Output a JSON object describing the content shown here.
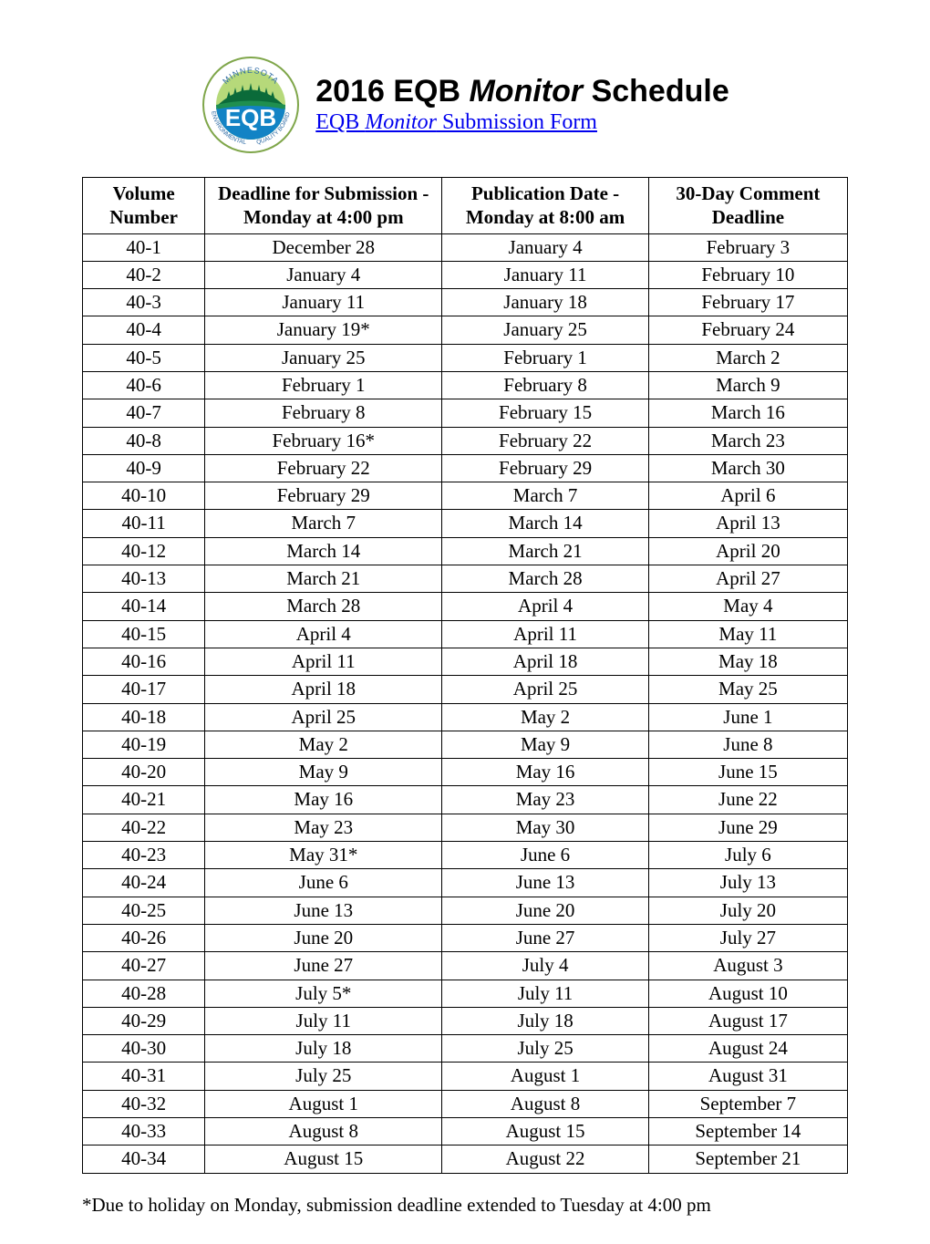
{
  "title": {
    "prefix": "2016 EQB ",
    "italic": "Monitor",
    "suffix": " Schedule"
  },
  "link": {
    "prefix": "EQB ",
    "italic": "Monitor",
    "suffix": " Submission Form"
  },
  "logo": {
    "outer_text_top": "MINNESOTA",
    "outer_text_bottom_left": "ENVIRONMENTAL",
    "outer_text_bottom_right": "QUALITY BOARD",
    "center_text": "EQB",
    "colors": {
      "ring_fill": "#ffffff",
      "ring_text": "#2d6aa4",
      "sky": "#b6d97a",
      "trees": "#0b6b3a",
      "hill": "#1f8f4f",
      "water": "#1283c5",
      "ring_border": "#7fa64a"
    }
  },
  "table": {
    "columns": [
      {
        "line1": "Volume",
        "line2": "Number"
      },
      {
        "line1": "Deadline for Submission -",
        "line2": "Monday at 4:00 pm"
      },
      {
        "line1": "Publication Date -",
        "line2": "Monday at 8:00 am"
      },
      {
        "line1": "30-Day Comment",
        "line2": "Deadline"
      }
    ],
    "rows": [
      [
        "40-1",
        "December 28",
        "January 4",
        "February 3"
      ],
      [
        "40-2",
        "January 4",
        "January 11",
        "February 10"
      ],
      [
        "40-3",
        "January 11",
        "January 18",
        "February 17"
      ],
      [
        "40-4",
        "January 19*",
        "January 25",
        "February 24"
      ],
      [
        "40-5",
        "January 25",
        "February 1",
        "March 2"
      ],
      [
        "40-6",
        "February 1",
        "February 8",
        "March 9"
      ],
      [
        "40-7",
        "February 8",
        "February 15",
        "March 16"
      ],
      [
        "40-8",
        "February 16*",
        "February 22",
        "March 23"
      ],
      [
        "40-9",
        "February 22",
        "February 29",
        "March 30"
      ],
      [
        "40-10",
        "February 29",
        "March 7",
        "April 6"
      ],
      [
        "40-11",
        "March 7",
        "March 14",
        "April 13"
      ],
      [
        "40-12",
        "March 14",
        "March 21",
        "April 20"
      ],
      [
        "40-13",
        "March 21",
        "March 28",
        "April 27"
      ],
      [
        "40-14",
        "March 28",
        "April 4",
        "May 4"
      ],
      [
        "40-15",
        "April 4",
        "April 11",
        "May 11"
      ],
      [
        "40-16",
        "April 11",
        "April 18",
        "May 18"
      ],
      [
        "40-17",
        "April 18",
        "April 25",
        "May 25"
      ],
      [
        "40-18",
        "April 25",
        "May 2",
        "June 1"
      ],
      [
        "40-19",
        "May 2",
        "May 9",
        "June 8"
      ],
      [
        "40-20",
        "May 9",
        "May 16",
        "June 15"
      ],
      [
        "40-21",
        "May 16",
        "May 23",
        "June 22"
      ],
      [
        "40-22",
        "May 23",
        "May 30",
        "June 29"
      ],
      [
        "40-23",
        "May 31*",
        "June 6",
        "July 6"
      ],
      [
        "40-24",
        "June 6",
        "June 13",
        "July 13"
      ],
      [
        "40-25",
        "June 13",
        "June 20",
        "July 20"
      ],
      [
        "40-26",
        "June 20",
        "June 27",
        "July 27"
      ],
      [
        "40-27",
        "June 27",
        "July 4",
        "August 3"
      ],
      [
        "40-28",
        "July 5*",
        "July 11",
        "August 10"
      ],
      [
        "40-29",
        "July 11",
        "July 18",
        "August 17"
      ],
      [
        "40-30",
        "July 18",
        "July 25",
        "August 24"
      ],
      [
        "40-31",
        "July 25",
        "August 1",
        "August 31"
      ],
      [
        "40-32",
        "August 1",
        "August 8",
        "September 7"
      ],
      [
        "40-33",
        "August 8",
        "August 15",
        "September 14"
      ],
      [
        "40-34",
        "August 15",
        "August 22",
        "September 21"
      ]
    ],
    "col_widths_pct": [
      16,
      31,
      27,
      26
    ],
    "border_color": "#000000",
    "font_size_pt": 16
  },
  "footnote": "*Due to holiday on Monday, submission deadline extended to Tuesday at 4:00 pm"
}
